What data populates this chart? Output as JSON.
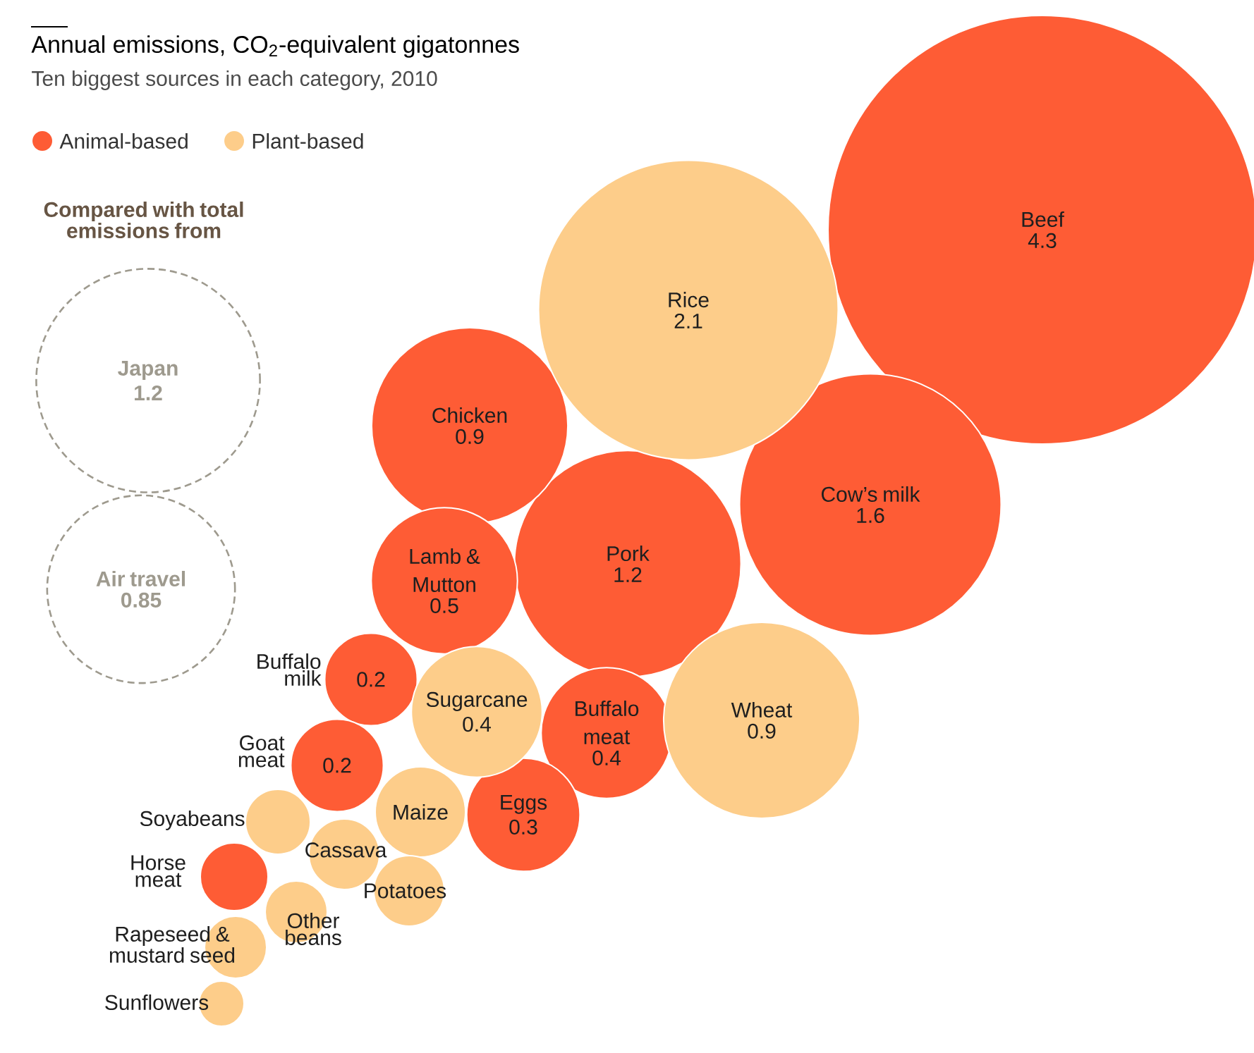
{
  "chart_data": {
    "type": "other",
    "title": "Annual emissions, CO$_{2}$-equivalent gigatonnes",
    "subtitle": "Ten biggest sources in each category, 2010",
    "annotations": [
      "Compared with total emissions from"
    ],
    "legend": "top left",
    "categories": [
      "Beef",
      "Rice",
      "Cow’s milk",
      "Pork",
      "Wheat",
      "Chicken",
      "Lamb & Mutton",
      "Sugarcane",
      "Buffalo meat",
      "Eggs",
      "Buffalo milk",
      "Goat meat",
      "Maize",
      "Soyabeans",
      "Cassava",
      "Horse meat",
      "Potatoes",
      "Other beans",
      "Rapeseed & mustard seed",
      "Sunflowers",
      "Japan",
      "Air travel"
    ],
    "series": [
      {
        "name": "Animal-based",
        "color": "#fe5c35",
        "values": [
          4.3,
          null,
          1.6,
          1.2,
          null,
          0.9,
          0.5,
          null,
          0.4,
          0.3,
          0.2,
          0.2,
          null,
          null,
          null,
          null,
          null,
          null,
          null,
          null,
          null,
          null
        ],
        "value_labels": [
          "4.3",
          null,
          "1.6",
          "1.2",
          null,
          "0.9",
          "0.5",
          null,
          "0.4",
          "0.3",
          "0.2",
          "0.2",
          null,
          null,
          null,
          null,
          null,
          null,
          null,
          null,
          null,
          null
        ]
      },
      {
        "name": "Plant-based",
        "color": "#fdcd8a",
        "values": [
          null,
          2.1,
          null,
          null,
          0.9,
          null,
          null,
          0.4,
          null,
          null,
          null,
          null,
          null,
          null,
          null,
          null,
          null,
          null,
          null,
          null,
          null,
          null
        ],
        "value_labels": [
          null,
          "2.1",
          null,
          null,
          "0.9",
          null,
          null,
          "0.4",
          null,
          null,
          null,
          null,
          null,
          null,
          null,
          null,
          null,
          null,
          null,
          null,
          null,
          null
        ]
      },
      {
        "color": "#9e9a8e",
        "line_style": "dashed",
        "values": [
          null,
          null,
          null,
          null,
          null,
          null,
          null,
          null,
          null,
          null,
          null,
          null,
          null,
          null,
          null,
          null,
          null,
          null,
          null,
          null,
          1.2,
          0.85
        ],
        "value_labels": [
          null,
          null,
          null,
          null,
          null,
          null,
          null,
          null,
          null,
          null,
          null,
          null,
          null,
          null,
          null,
          null,
          null,
          null,
          null,
          null,
          "1.2",
          "0.85"
        ]
      }
    ]
  }
}
